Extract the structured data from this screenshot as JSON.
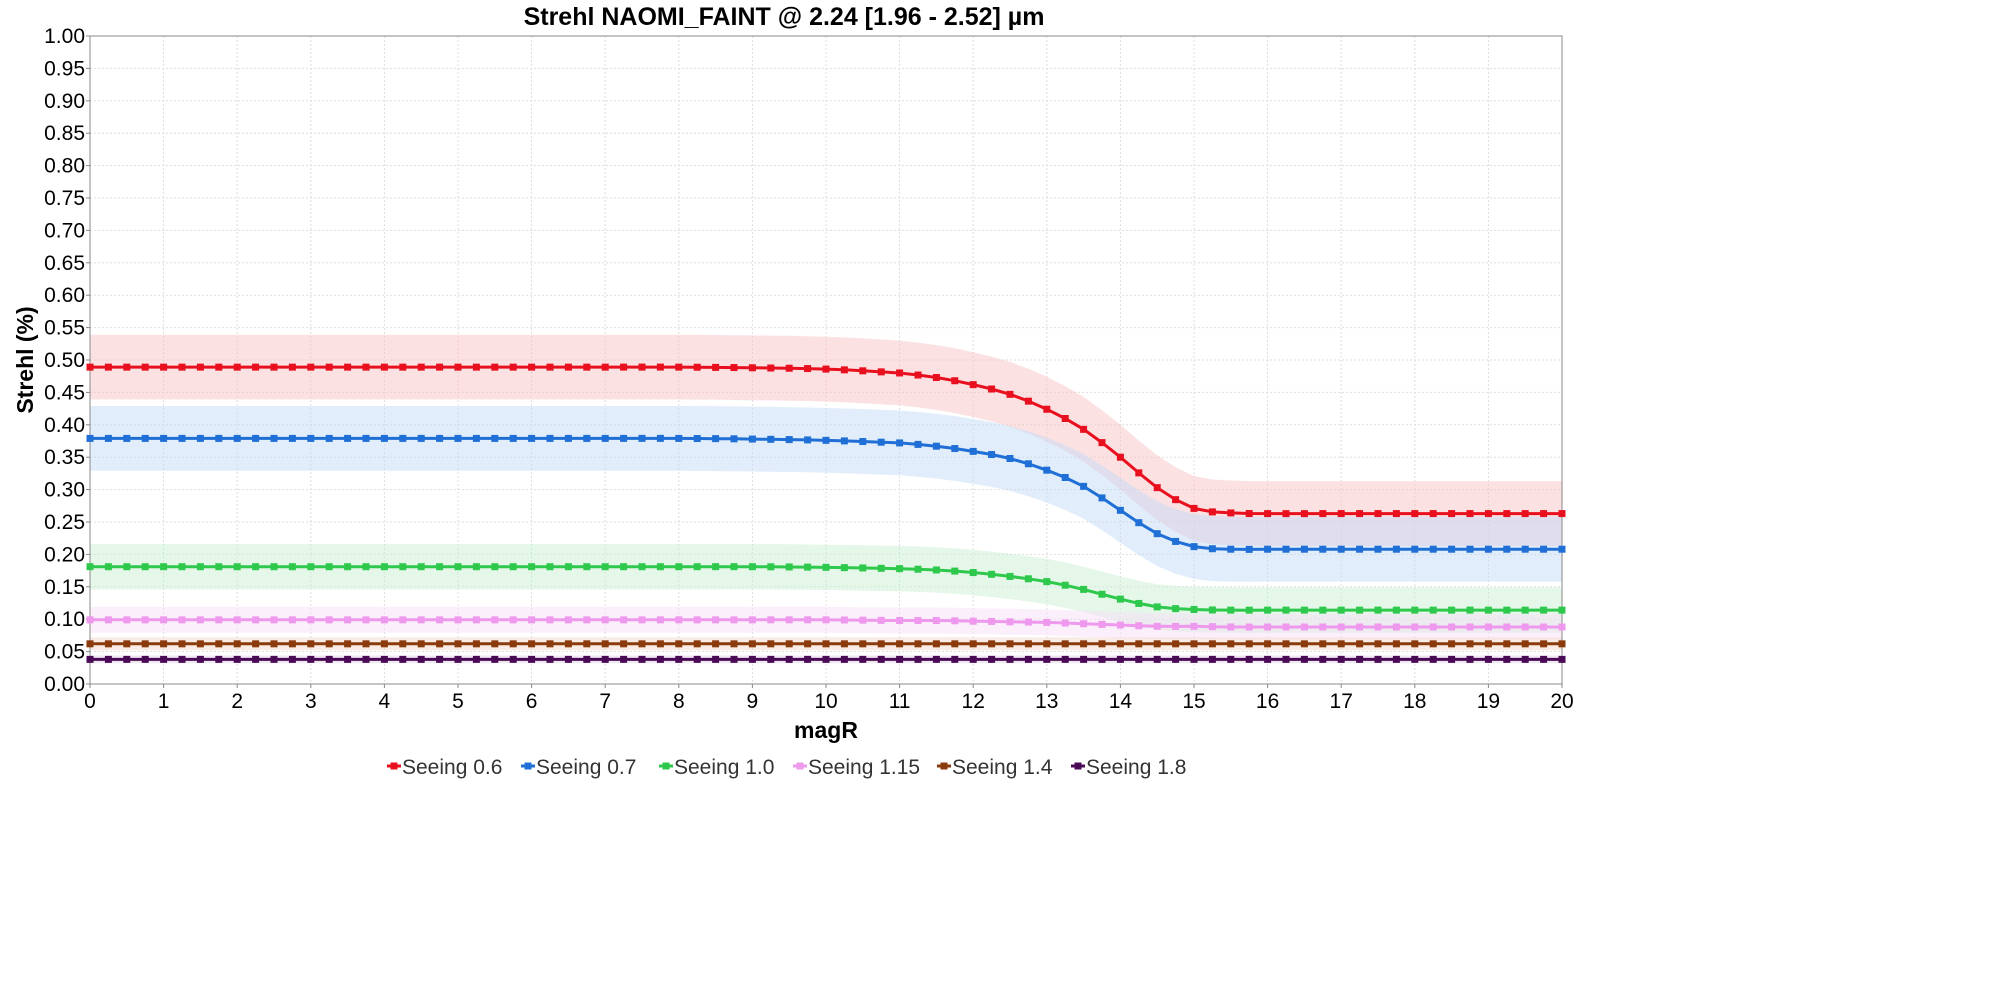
{
  "chart_data": {
    "type": "line",
    "title": "Strehl NAOMI_FAINT @ 2.24 [1.96 - 2.52] µm",
    "xlabel": "magR",
    "ylabel": "Strehl (%)",
    "xlim": [
      0,
      20
    ],
    "ylim": [
      0,
      1.0
    ],
    "x_ticks": [
      "0",
      "1",
      "2",
      "3",
      "4",
      "5",
      "6",
      "7",
      "8",
      "9",
      "10",
      "11",
      "12",
      "13",
      "14",
      "15",
      "16",
      "17",
      "18",
      "19",
      "20"
    ],
    "y_ticks": [
      "0.00",
      "0.05",
      "0.10",
      "0.15",
      "0.20",
      "0.25",
      "0.30",
      "0.35",
      "0.40",
      "0.45",
      "0.50",
      "0.55",
      "0.60",
      "0.65",
      "0.70",
      "0.75",
      "0.80",
      "0.85",
      "0.90",
      "0.95",
      "1.00"
    ],
    "grid": true,
    "legend_position": "bottom",
    "x": [
      0,
      1,
      2,
      3,
      4,
      5,
      6,
      7,
      8,
      9,
      10,
      11,
      11.5,
      12,
      12.5,
      13,
      13.5,
      14,
      14.5,
      15,
      15.5,
      16,
      17,
      18,
      19,
      20
    ],
    "series": [
      {
        "name": "Seeing 0.6",
        "color": "#e8101e",
        "band_color": "#f9c4c8",
        "values": [
          0.489,
          0.489,
          0.489,
          0.489,
          0.489,
          0.489,
          0.489,
          0.489,
          0.489,
          0.488,
          0.486,
          0.48,
          0.473,
          0.462,
          0.447,
          0.424,
          0.393,
          0.35,
          0.303,
          0.271,
          0.264,
          0.263,
          0.263,
          0.263,
          0.263,
          0.263
        ],
        "band": 0.05
      },
      {
        "name": "Seeing 0.7",
        "color": "#1f6fd6",
        "band_color": "#c3dcf5",
        "values": [
          0.379,
          0.379,
          0.379,
          0.379,
          0.379,
          0.379,
          0.379,
          0.379,
          0.379,
          0.378,
          0.376,
          0.372,
          0.367,
          0.359,
          0.348,
          0.33,
          0.305,
          0.268,
          0.232,
          0.212,
          0.208,
          0.208,
          0.208,
          0.208,
          0.208,
          0.208
        ],
        "band": 0.05
      },
      {
        "name": "Seeing 1.0",
        "color": "#2ec94c",
        "band_color": "#c9efd2",
        "values": [
          0.181,
          0.181,
          0.181,
          0.181,
          0.181,
          0.181,
          0.181,
          0.181,
          0.181,
          0.181,
          0.18,
          0.178,
          0.176,
          0.172,
          0.166,
          0.158,
          0.146,
          0.131,
          0.119,
          0.115,
          0.114,
          0.114,
          0.114,
          0.114,
          0.114,
          0.114
        ],
        "band": 0.035
      },
      {
        "name": "Seeing 1.15",
        "color": "#ee99ee",
        "band_color": "#f8e0f8",
        "values": [
          0.099,
          0.099,
          0.099,
          0.099,
          0.099,
          0.099,
          0.099,
          0.099,
          0.099,
          0.099,
          0.099,
          0.098,
          0.098,
          0.097,
          0.096,
          0.095,
          0.093,
          0.091,
          0.089,
          0.089,
          0.088,
          0.088,
          0.088,
          0.088,
          0.088,
          0.088
        ],
        "band": 0.02
      },
      {
        "name": "Seeing 1.4",
        "color": "#8b3b0b",
        "band_color": "#f3d9d0",
        "values": [
          0.062,
          0.062,
          0.062,
          0.062,
          0.062,
          0.062,
          0.062,
          0.062,
          0.062,
          0.062,
          0.062,
          0.062,
          0.062,
          0.062,
          0.062,
          0.062,
          0.062,
          0.062,
          0.062,
          0.062,
          0.062,
          0.062,
          0.062,
          0.062,
          0.062,
          0.062
        ],
        "band": 0.01
      },
      {
        "name": "Seeing 1.8",
        "color": "#4a0a55",
        "band_color": "#e2d4e8",
        "values": [
          0.038,
          0.038,
          0.038,
          0.038,
          0.038,
          0.038,
          0.038,
          0.038,
          0.038,
          0.038,
          0.038,
          0.038,
          0.038,
          0.038,
          0.038,
          0.038,
          0.038,
          0.038,
          0.038,
          0.038,
          0.038,
          0.038,
          0.038,
          0.038,
          0.038,
          0.038
        ],
        "band": 0.006
      }
    ]
  }
}
